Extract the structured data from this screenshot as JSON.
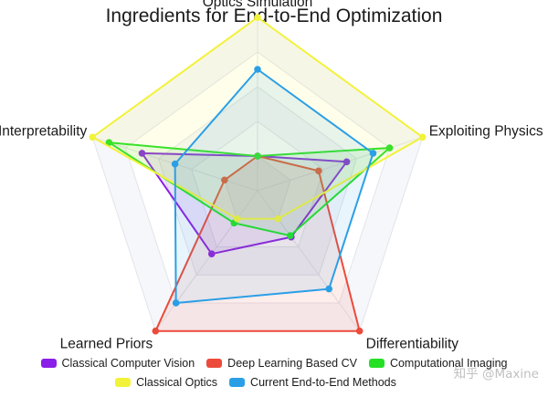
{
  "chart_data": {
    "type": "radar",
    "title": "Ingredients for End-to-End Optimization",
    "axes": [
      "Optics Simulation",
      "Exploiting Physics",
      "Differentiability",
      "Learned Priors",
      "Interpretability"
    ],
    "range": [
      0,
      1
    ],
    "levels": 5,
    "grid": true,
    "legend_position": "bottom",
    "series": [
      {
        "name": "Classical Computer Vision",
        "color": "#8a1ee8",
        "values": [
          0.2,
          0.54,
          0.33,
          0.45,
          0.7
        ]
      },
      {
        "name": "Deep Learning Based CV",
        "color": "#ec4a3a",
        "values": [
          0.2,
          0.37,
          1.0,
          1.0,
          0.2
        ]
      },
      {
        "name": "Computational Imaging",
        "color": "#25e025",
        "values": [
          0.2,
          0.8,
          0.32,
          0.23,
          0.9
        ]
      },
      {
        "name": "Classical Optics",
        "color": "#f2f23a",
        "values": [
          1.0,
          1.0,
          0.2,
          0.2,
          1.0
        ]
      },
      {
        "name": "Current End-to-End Methods",
        "color": "#2b9fe6",
        "values": [
          0.7,
          0.7,
          0.7,
          0.8,
          0.5
        ]
      }
    ]
  },
  "legend": {
    "row1": [
      "Classical Computer Vision",
      "Deep Learning Based CV",
      "Computational Imaging"
    ],
    "row2": [
      "Classical Optics",
      "Current End-to-End Methods"
    ]
  },
  "watermark": "知乎 @Maxine"
}
